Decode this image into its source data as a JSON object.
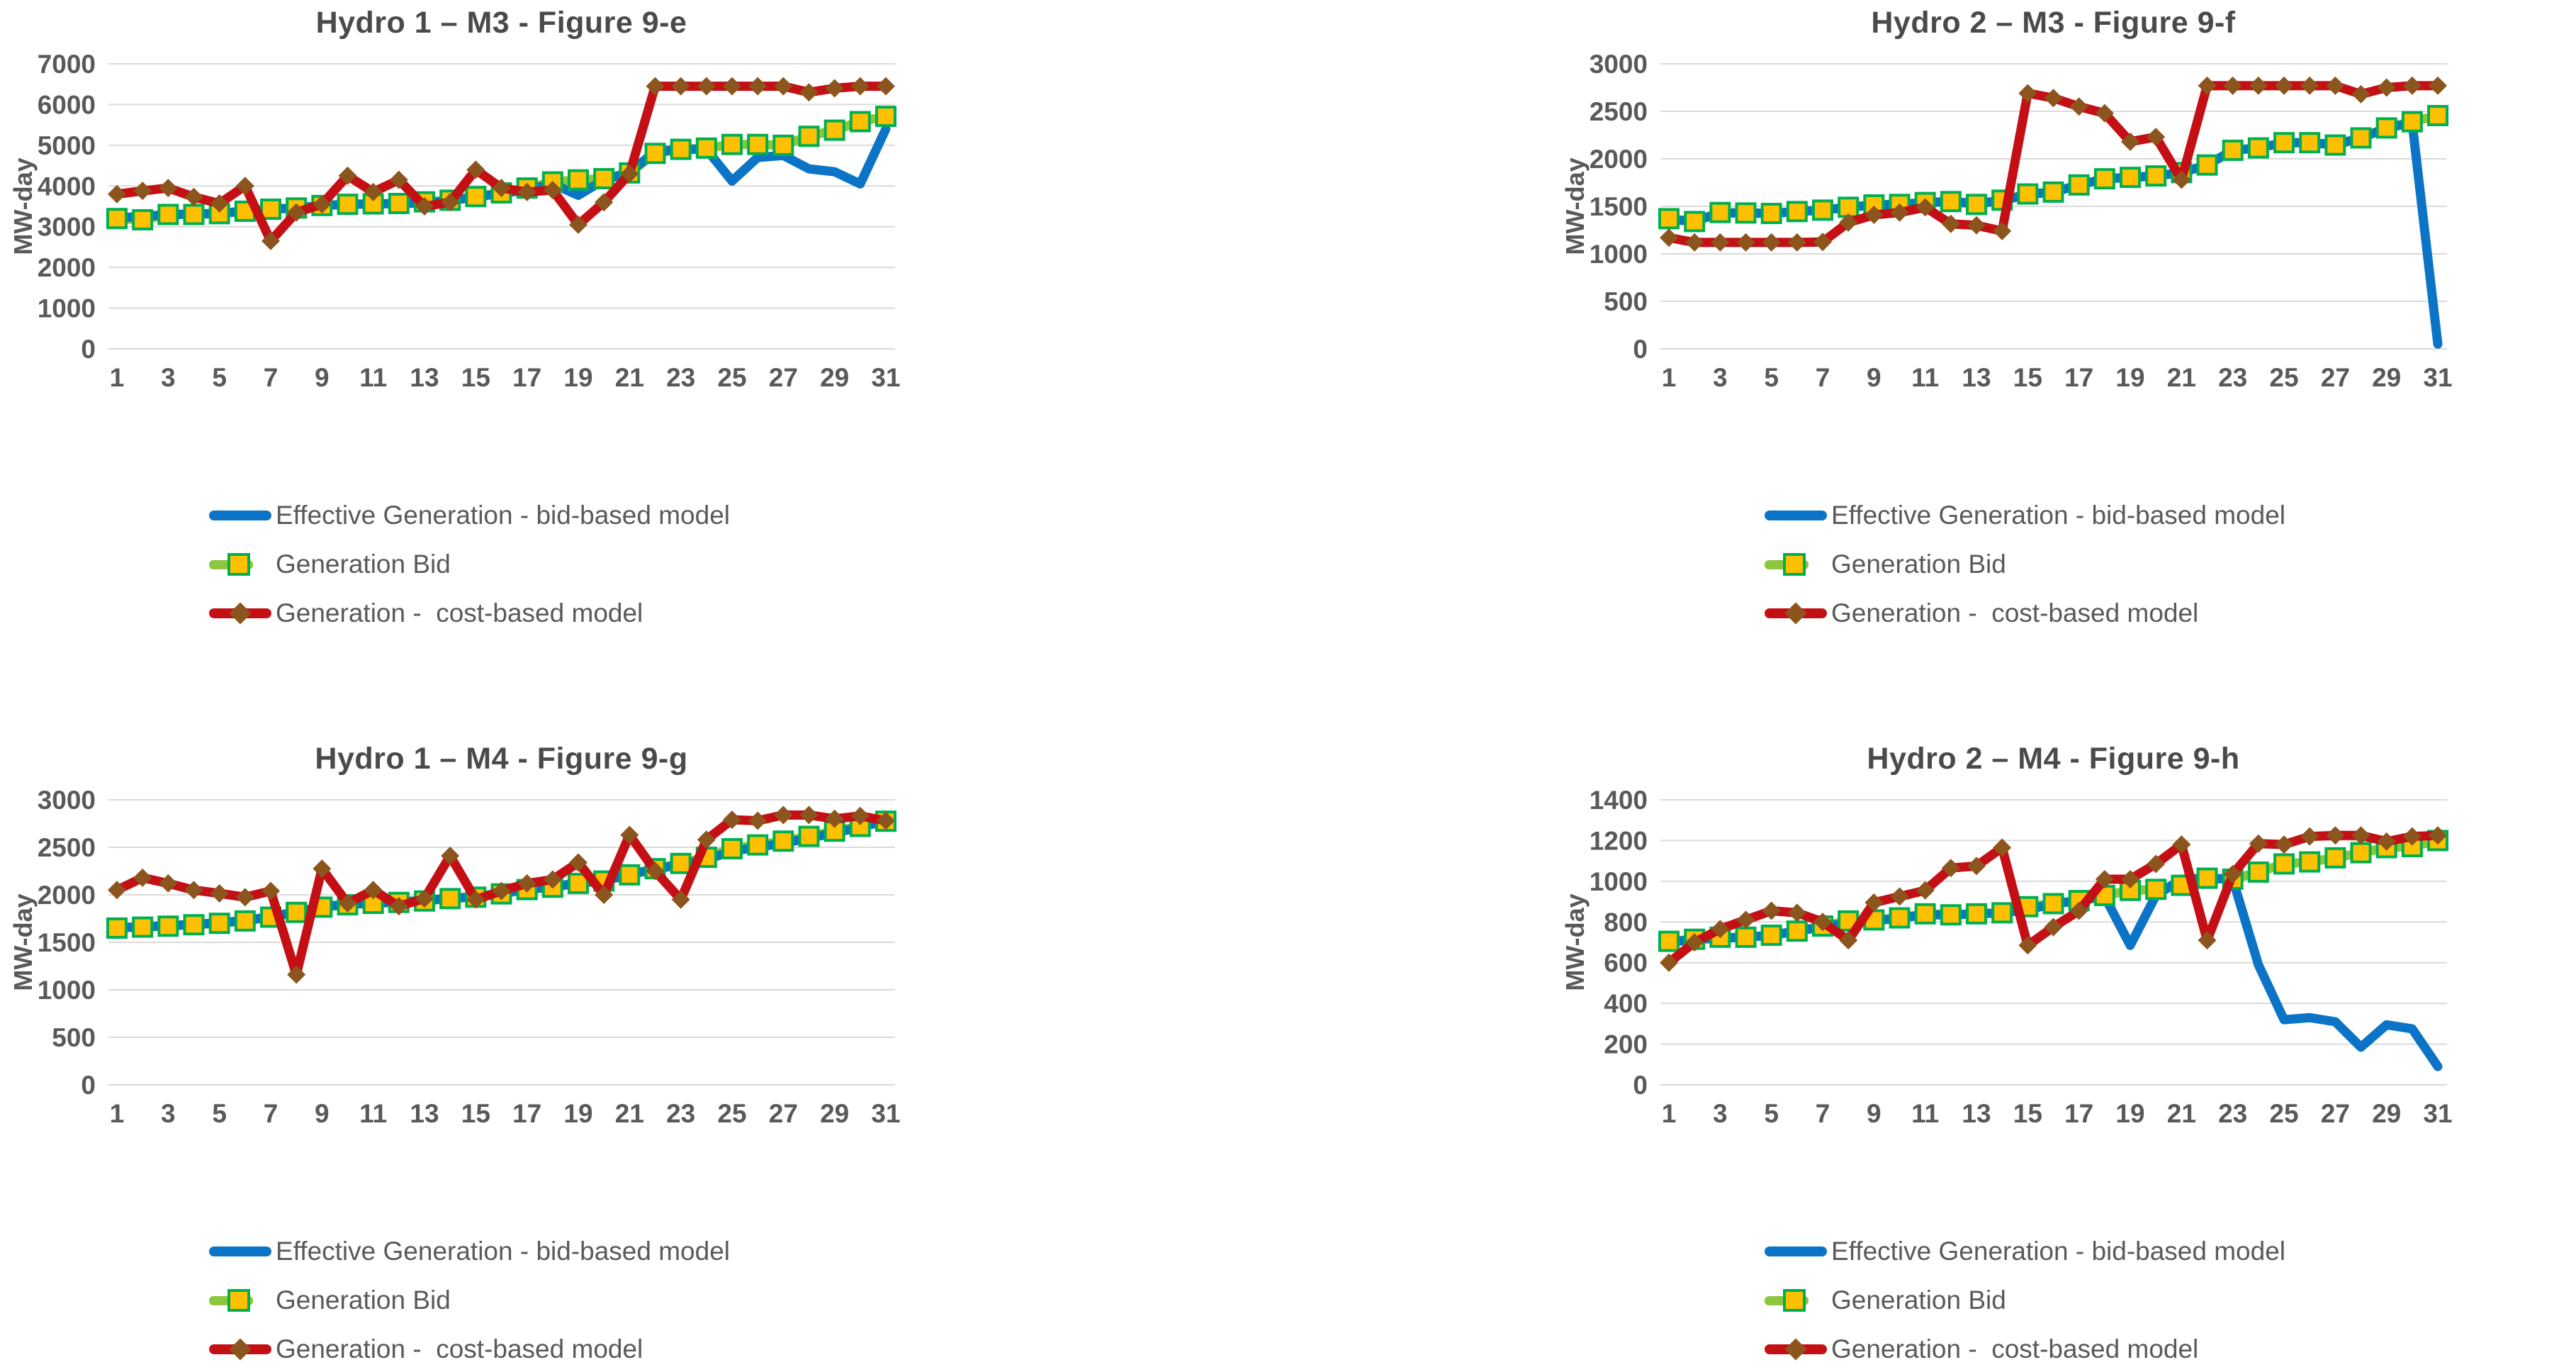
{
  "page": {
    "background": "#ffffff"
  },
  "colors": {
    "effective_generation": "#0C74C6",
    "generation_bid_line": "#8CC63E",
    "generation_bid_marker_fill": "#FFC000",
    "generation_bid_marker_stroke": "#00B050",
    "cost_based": "#C40F15",
    "cost_based_marker": "#8C551E",
    "gridline": "#DADADA",
    "tick_text": "#595959",
    "title_text": "#4A4A4A"
  },
  "legend": {
    "items": [
      {
        "key": "effective",
        "label": "Effective Generation - bid-based model"
      },
      {
        "key": "generation_bid",
        "label": "Generation Bid"
      },
      {
        "key": "cost_based",
        "label": "Generation -  cost-based model"
      }
    ]
  },
  "chart_data": {
    "type": "line",
    "x_axis": "day of month",
    "days": [
      1,
      2,
      3,
      4,
      5,
      6,
      7,
      8,
      9,
      10,
      11,
      12,
      13,
      14,
      15,
      16,
      17,
      18,
      19,
      20,
      21,
      22,
      23,
      24,
      25,
      26,
      27,
      28,
      29,
      30,
      31
    ],
    "x_tick_labels": [
      "1",
      "3",
      "5",
      "7",
      "9",
      "11",
      "13",
      "15",
      "17",
      "19",
      "21",
      "23",
      "25",
      "27",
      "29",
      "31"
    ],
    "legend_position": "bottom-left",
    "grid": "horizontal-only",
    "charts": [
      {
        "id": "hydro1-m3",
        "title": "Hydro 1 – M3 - Figure 9-e",
        "ylabel": "MW-day",
        "ylim": [
          0,
          7000
        ],
        "ystep": 1000,
        "series": [
          {
            "name": "Effective Generation - bid-based model",
            "values": [
              3220,
              3250,
              3300,
              3310,
              3330,
              3380,
              3430,
              3460,
              3520,
              3550,
              3560,
              3570,
              3580,
              3640,
              3730,
              3820,
              3900,
              4050,
              3770,
              4150,
              4330,
              4850,
              4900,
              4900,
              4120,
              4700,
              4750,
              4420,
              4350,
              4050,
              5400
            ]
          },
          {
            "name": "Generation Bid",
            "values": [
              3200,
              3170,
              3300,
              3300,
              3320,
              3380,
              3430,
              3460,
              3520,
              3550,
              3560,
              3570,
              3610,
              3650,
              3740,
              3830,
              3950,
              4100,
              4150,
              4180,
              4320,
              4800,
              4900,
              4930,
              5020,
              5020,
              5000,
              5220,
              5370,
              5580,
              5710
            ]
          },
          {
            "name": "Generation -  cost-based model",
            "values": [
              3800,
              3880,
              3950,
              3730,
              3570,
              4000,
              2650,
              3350,
              3550,
              4250,
              3850,
              4150,
              3500,
              3600,
              4400,
              3950,
              3850,
              3900,
              3050,
              3600,
              4300,
              6450,
              6450,
              6450,
              6450,
              6450,
              6450,
              6300,
              6400,
              6450,
              6450
            ]
          }
        ]
      },
      {
        "id": "hydro2-m3",
        "title": "Hydro 2 – M3 - Figure 9-f",
        "ylabel": "MW-day",
        "ylim": [
          0,
          3000
        ],
        "ystep": 500,
        "series": [
          {
            "name": "Effective Generation - bid-based model",
            "values": [
              1360,
              1345,
              1430,
              1430,
              1425,
              1445,
              1460,
              1490,
              1515,
              1520,
              1540,
              1550,
              1530,
              1560,
              1625,
              1650,
              1725,
              1790,
              1805,
              1820,
              1855,
              1935,
              2090,
              2115,
              2170,
              2170,
              2150,
              2220,
              2325,
              2380,
              50
            ]
          },
          {
            "name": "Generation Bid",
            "values": [
              1370,
              1340,
              1435,
              1430,
              1425,
              1445,
              1460,
              1490,
              1515,
              1520,
              1540,
              1550,
              1520,
              1565,
              1630,
              1650,
              1725,
              1790,
              1805,
              1820,
              1855,
              1935,
              2090,
              2115,
              2170,
              2170,
              2145,
              2220,
              2325,
              2390,
              2455
            ]
          },
          {
            "name": "Generation -  cost-based model",
            "values": [
              1170,
              1120,
              1120,
              1120,
              1120,
              1120,
              1125,
              1330,
              1410,
              1435,
              1490,
              1315,
              1300,
              1240,
              2690,
              2640,
              2550,
              2480,
              2180,
              2230,
              1780,
              2770,
              2770,
              2770,
              2770,
              2770,
              2770,
              2680,
              2750,
              2770,
              2770
            ]
          }
        ]
      },
      {
        "id": "hydro1-m4",
        "title": "Hydro 1 – M4 - Figure 9-g",
        "ylabel": "MW-day",
        "ylim": [
          0,
          3000
        ],
        "ystep": 500,
        "series": [
          {
            "name": "Effective Generation - bid-based model",
            "values": [
              1655,
              1665,
              1675,
              1690,
              1705,
              1730,
              1770,
              1820,
              1875,
              1900,
              1915,
              1925,
              1940,
              1965,
              1980,
              2015,
              2060,
              2085,
              2125,
              2150,
              2215,
              2270,
              2320,
              2370,
              2460,
              2500,
              2545,
              2595,
              2655,
              2710,
              2780
            ]
          },
          {
            "name": "Generation Bid",
            "values": [
              1650,
              1660,
              1670,
              1685,
              1700,
              1725,
              1765,
              1815,
              1870,
              1895,
              1910,
              1920,
              1935,
              1960,
              1975,
              2010,
              2055,
              2080,
              2120,
              2145,
              2210,
              2275,
              2330,
              2395,
              2485,
              2525,
              2565,
              2615,
              2670,
              2720,
              2775
            ]
          },
          {
            "name": "Generation -  cost-based model",
            "values": [
              2050,
              2180,
              2120,
              2050,
              2015,
              1975,
              2040,
              1160,
              2275,
              1910,
              2050,
              1880,
              1960,
              2410,
              1950,
              2040,
              2120,
              2160,
              2340,
              2000,
              2630,
              2250,
              1950,
              2580,
              2790,
              2780,
              2840,
              2840,
              2800,
              2830,
              2780
            ]
          }
        ]
      },
      {
        "id": "hydro2-m4",
        "title": "Hydro 2 – M4 - Figure 9-h",
        "ylabel": "MW-day",
        "ylim": [
          0,
          1400
        ],
        "ystep": 200,
        "series": [
          {
            "name": "Effective Generation - bid-based model",
            "values": [
              700,
              715,
              720,
              725,
              735,
              755,
              775,
              795,
              805,
              820,
              835,
              835,
              840,
              845,
              860,
              890,
              905,
              925,
              685,
              930,
              1010,
              1015,
              1010,
              590,
              320,
              330,
              310,
              185,
              295,
              275,
              90
            ]
          },
          {
            "name": "Generation Bid",
            "values": [
              705,
              715,
              725,
              725,
              735,
              755,
              780,
              805,
              810,
              820,
              840,
              835,
              840,
              845,
              875,
              890,
              905,
              930,
              955,
              960,
              980,
              1015,
              1010,
              1045,
              1085,
              1095,
              1115,
              1140,
              1165,
              1170,
              1200
            ]
          },
          {
            "name": "Generation -  cost-based model",
            "values": [
              600,
              700,
              765,
              810,
              855,
              845,
              800,
              710,
              895,
              925,
              955,
              1065,
              1075,
              1165,
              685,
              775,
              855,
              1010,
              1010,
              1085,
              1180,
              710,
              1035,
              1185,
              1180,
              1220,
              1225,
              1225,
              1195,
              1220,
              1225
            ]
          }
        ]
      }
    ]
  }
}
